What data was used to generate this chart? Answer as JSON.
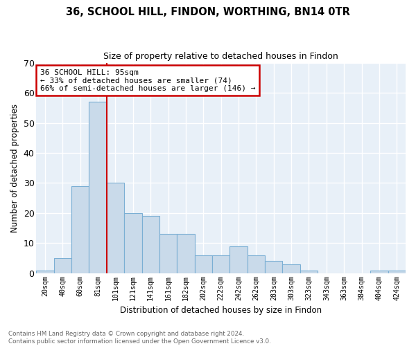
{
  "title1": "36, SCHOOL HILL, FINDON, WORTHING, BN14 0TR",
  "title2": "Size of property relative to detached houses in Findon",
  "xlabel": "Distribution of detached houses by size in Findon",
  "ylabel": "Number of detached properties",
  "footer": "Contains HM Land Registry data © Crown copyright and database right 2024.\nContains public sector information licensed under the Open Government Licence v3.0.",
  "bar_labels": [
    "20sqm",
    "40sqm",
    "60sqm",
    "81sqm",
    "101sqm",
    "121sqm",
    "141sqm",
    "161sqm",
    "182sqm",
    "202sqm",
    "222sqm",
    "242sqm",
    "262sqm",
    "283sqm",
    "303sqm",
    "323sqm",
    "343sqm",
    "363sqm",
    "384sqm",
    "404sqm",
    "424sqm"
  ],
  "bar_values": [
    1,
    5,
    29,
    57,
    30,
    20,
    19,
    13,
    13,
    6,
    6,
    9,
    6,
    4,
    3,
    1,
    0,
    0,
    0,
    1,
    1
  ],
  "bar_color": "#c9daea",
  "bar_edge_color": "#7bafd4",
  "fig_bg_color": "#ffffff",
  "plot_bg_color": "#e8f0f8",
  "grid_color": "#ffffff",
  "annotation_box_color": "#ffffff",
  "annotation_box_edge": "#cc0000",
  "annotation_line_color": "#cc0000",
  "annotation_label": "36 SCHOOL HILL: 95sqm\n← 33% of detached houses are smaller (74)\n66% of semi-detached houses are larger (146) →",
  "vline_x_idx": 3,
  "ylim": [
    0,
    70
  ],
  "yticks": [
    0,
    10,
    20,
    30,
    40,
    50,
    60,
    70
  ]
}
